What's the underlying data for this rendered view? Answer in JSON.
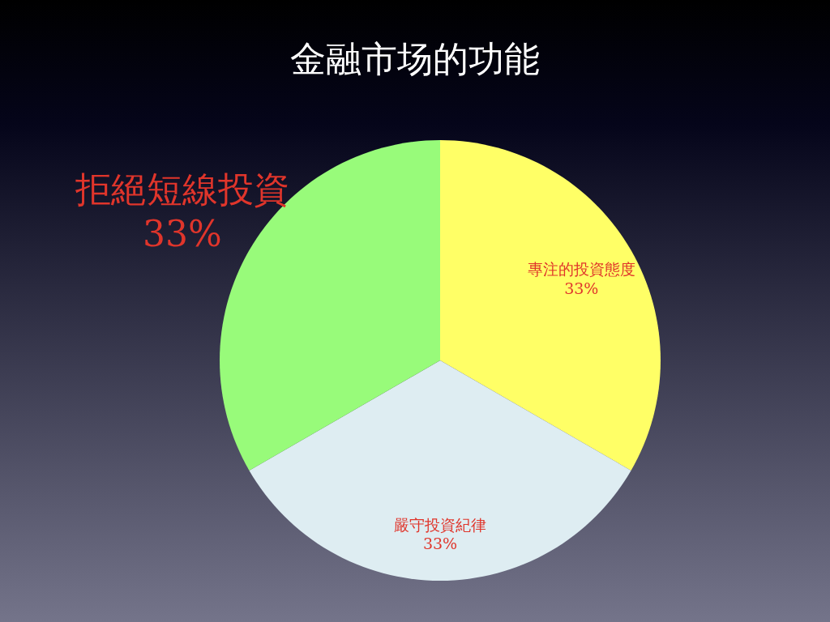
{
  "chart_data": {
    "type": "pie",
    "title": "金融市场的功能",
    "categories": [
      "專注的投資態度",
      "嚴守投資紀律",
      "拒絕短線投資"
    ],
    "values": [
      33,
      33,
      33
    ],
    "colors": [
      "#ffff66",
      "#deedf2",
      "#98fb7a"
    ],
    "value_labels": [
      "33%",
      "33%",
      "33%"
    ]
  }
}
